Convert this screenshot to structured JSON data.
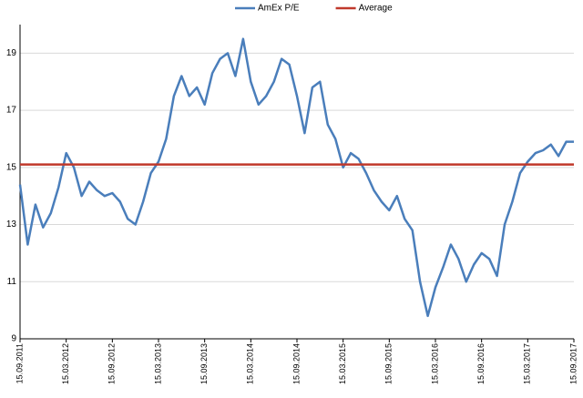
{
  "chart_data": {
    "type": "line",
    "categories": [
      "15.09.2011",
      null,
      null,
      null,
      null,
      null,
      "15.03.2012",
      null,
      null,
      null,
      null,
      null,
      "15.09.2012",
      null,
      null,
      null,
      null,
      null,
      "15.03.2013",
      null,
      null,
      null,
      null,
      null,
      "15.09.2013",
      null,
      null,
      null,
      null,
      null,
      "15.03.2014",
      null,
      null,
      null,
      null,
      null,
      "15.09.2014",
      null,
      null,
      null,
      null,
      null,
      "15.03.2015",
      null,
      null,
      null,
      null,
      null,
      "15.09.2015",
      null,
      null,
      null,
      null,
      null,
      "15.03.2016",
      null,
      null,
      null,
      null,
      null,
      "15.09.2016",
      null,
      null,
      null,
      null,
      null,
      "15.03.2017",
      null,
      null,
      null,
      null,
      null,
      "15.09.2017"
    ],
    "series": [
      {
        "name": "AmEx P/E",
        "color": "#4a7ebb",
        "values": [
          14.4,
          12.3,
          13.7,
          12.9,
          13.4,
          14.3,
          15.5,
          15.0,
          14.0,
          14.5,
          14.2,
          14.0,
          14.1,
          13.8,
          13.2,
          13.0,
          13.8,
          14.8,
          15.2,
          16.0,
          17.5,
          18.2,
          17.5,
          17.8,
          17.2,
          18.3,
          18.8,
          19.0,
          18.2,
          19.5,
          18.0,
          17.2,
          17.5,
          18.0,
          18.8,
          18.6,
          17.5,
          16.2,
          17.8,
          18.0,
          16.5,
          16.0,
          15.0,
          15.5,
          15.3,
          14.8,
          14.2,
          13.8,
          13.5,
          14.0,
          13.2,
          12.8,
          11.0,
          9.8,
          10.8,
          11.5,
          12.3,
          11.8,
          11.0,
          11.6,
          12.0,
          11.8,
          11.2,
          13.0,
          13.8,
          14.8,
          15.2,
          15.5,
          15.6,
          15.8,
          15.4,
          15.9,
          15.9
        ]
      }
    ],
    "average": {
      "name": "Average",
      "color": "#c0392b",
      "value": 15.1
    },
    "ylim": [
      9,
      20
    ],
    "yticks": [
      9,
      11,
      13,
      15,
      17,
      19
    ],
    "grid": true,
    "legend": "top"
  }
}
